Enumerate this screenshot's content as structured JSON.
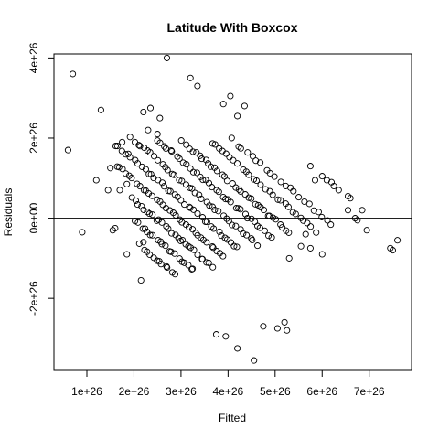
{
  "chart_data": {
    "type": "scatter",
    "title": "Latitude With Boxcox",
    "xlabel": "Fitted",
    "ylabel": "Residuals",
    "xlim": [
      3e+25,
      7.9e+26
    ],
    "ylim": [
      -3.8e+26,
      4.1e+26
    ],
    "x_ticks": [
      1e+26,
      2e+26,
      3e+26,
      4e+26,
      5e+26,
      6e+26,
      7e+26
    ],
    "x_tick_labels": [
      "1e+26",
      "2e+26",
      "3e+26",
      "4e+26",
      "5e+26",
      "6e+26",
      "7e+26"
    ],
    "y_ticks": [
      -2e+26,
      0,
      2e+26,
      4e+26
    ],
    "y_tick_labels": [
      "-2e+26",
      "0e+00",
      "2e+26",
      "4e+26"
    ],
    "reference_line_y": 0,
    "grid": false,
    "legend": "none",
    "marker": "open-circle",
    "slope": -1,
    "units": "1e26",
    "bands": [
      {
        "c": 6.05,
        "x_start": 4.05,
        "x_end": 6.25,
        "n": 22
      },
      {
        "c": 5.55,
        "x_start": 3.6,
        "x_end": 5.9,
        "n": 28
      },
      {
        "c": 4.95,
        "x_start": 3.0,
        "x_end": 5.35,
        "n": 34
      },
      {
        "c": 4.45,
        "x_start": 2.45,
        "x_end": 4.95,
        "n": 36
      },
      {
        "c": 3.95,
        "x_start": 1.9,
        "x_end": 4.65,
        "n": 38
      },
      {
        "c": 3.45,
        "x_start": 1.55,
        "x_end": 4.25,
        "n": 38
      },
      {
        "c": 2.95,
        "x_start": 1.6,
        "x_end": 3.95,
        "n": 34
      },
      {
        "c": 2.45,
        "x_start": 1.95,
        "x_end": 3.7,
        "n": 28
      },
      {
        "c": 1.95,
        "x_start": 2.0,
        "x_end": 3.3,
        "n": 20
      },
      {
        "c": 1.45,
        "x_start": 2.1,
        "x_end": 2.9,
        "n": 12
      }
    ],
    "tail_points": [
      {
        "x": 0.6,
        "y": 1.7
      },
      {
        "x": 0.7,
        "y": 3.6
      },
      {
        "x": 0.9,
        "y": -0.35
      },
      {
        "x": 1.2,
        "y": 0.95
      },
      {
        "x": 1.3,
        "y": 2.7
      },
      {
        "x": 1.45,
        "y": 0.7
      },
      {
        "x": 1.5,
        "y": 1.25
      },
      {
        "x": 1.6,
        "y": -0.25
      },
      {
        "x": 1.7,
        "y": 0.7
      },
      {
        "x": 1.75,
        "y": 1.9
      },
      {
        "x": 1.55,
        "y": -0.3
      },
      {
        "x": 1.85,
        "y": -0.9
      },
      {
        "x": 2.7,
        "y": 4.0
      },
      {
        "x": 3.2,
        "y": 3.5
      },
      {
        "x": 3.35,
        "y": 3.3
      },
      {
        "x": 3.9,
        "y": 2.85
      },
      {
        "x": 4.05,
        "y": 3.05
      },
      {
        "x": 4.2,
        "y": 2.55
      },
      {
        "x": 4.35,
        "y": 2.8
      },
      {
        "x": 3.75,
        "y": -2.9
      },
      {
        "x": 3.95,
        "y": -2.95
      },
      {
        "x": 4.2,
        "y": -3.25
      },
      {
        "x": 4.55,
        "y": -3.55
      },
      {
        "x": 4.75,
        "y": -2.7
      },
      {
        "x": 5.05,
        "y": -2.75
      },
      {
        "x": 5.2,
        "y": -2.6
      },
      {
        "x": 5.25,
        "y": -2.8
      },
      {
        "x": 5.75,
        "y": 1.3
      },
      {
        "x": 5.85,
        "y": 0.95
      },
      {
        "x": 6.0,
        "y": 1.05
      },
      {
        "x": 6.1,
        "y": 0.95
      },
      {
        "x": 6.2,
        "y": 0.9
      },
      {
        "x": 6.25,
        "y": 0.8
      },
      {
        "x": 6.35,
        "y": 0.7
      },
      {
        "x": 6.55,
        "y": 0.55
      },
      {
        "x": 6.6,
        "y": 0.5
      },
      {
        "x": 6.55,
        "y": 0.2
      },
      {
        "x": 6.7,
        "y": 0.0
      },
      {
        "x": 6.75,
        "y": -0.05
      },
      {
        "x": 6.85,
        "y": 0.2
      },
      {
        "x": 6.95,
        "y": -0.3
      },
      {
        "x": 6.0,
        "y": -0.9
      },
      {
        "x": 5.75,
        "y": -0.75
      },
      {
        "x": 5.65,
        "y": -0.4
      },
      {
        "x": 7.45,
        "y": -0.75
      },
      {
        "x": 7.5,
        "y": -0.8
      },
      {
        "x": 7.6,
        "y": -0.55
      },
      {
        "x": 5.3,
        "y": -1.0
      },
      {
        "x": 5.55,
        "y": -0.7
      },
      {
        "x": 2.3,
        "y": 2.2
      },
      {
        "x": 2.35,
        "y": 2.75
      },
      {
        "x": 2.2,
        "y": 2.65
      },
      {
        "x": 2.5,
        "y": 2.1
      },
      {
        "x": 2.55,
        "y": 2.5
      },
      {
        "x": 2.15,
        "y": -1.55
      },
      {
        "x": 2.2,
        "y": -0.6
      },
      {
        "x": 1.85,
        "y": 0.85
      }
    ]
  }
}
